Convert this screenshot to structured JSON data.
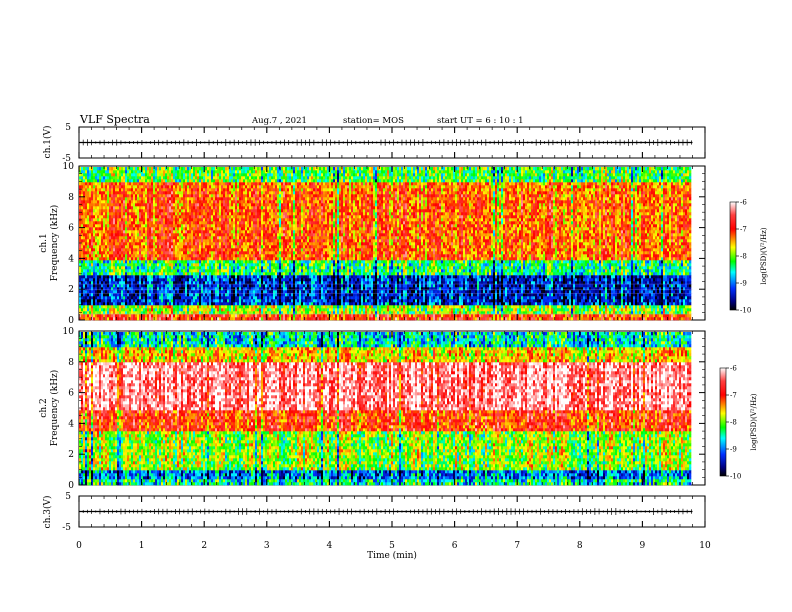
{
  "header": {
    "title": "VLF Spectra",
    "date": "Aug.7 , 2021",
    "station": "station= MOS",
    "start": "start UT = 6 : 10 : 1"
  },
  "colors": {
    "colormap": [
      "#ffffff",
      "#ff0000",
      "#ff8c00",
      "#ffff00",
      "#00ff00",
      "#00ffff",
      "#0040ff",
      "#000080",
      "#000000"
    ]
  },
  "chart_data": [
    {
      "type": "line",
      "panel": "ch1-waveform",
      "ylabel": "ch.1(V)",
      "ylim": [
        -5,
        5
      ],
      "y_tick_labels": [
        "5",
        "-5"
      ],
      "x": [
        0,
        9.8
      ],
      "values": [
        0,
        0
      ]
    },
    {
      "type": "heatmap",
      "panel": "ch1-spectrogram",
      "ylabel": "ch.1 Frequency (kHz)",
      "ylim": [
        0,
        10
      ],
      "y_tick_labels": [
        "0",
        "2",
        "4",
        "6",
        "8",
        "10"
      ],
      "x_range_min": [
        0,
        9.8
      ],
      "bands": [
        {
          "freq_khz": [
            0,
            0.3
          ],
          "logpsd": -7.0
        },
        {
          "freq_khz": [
            0.3,
            1.0
          ],
          "logpsd": -8.0
        },
        {
          "freq_khz": [
            1.0,
            3.0
          ],
          "logpsd": -9.3
        },
        {
          "freq_khz": [
            3.0,
            4.0
          ],
          "logpsd": -8.4
        },
        {
          "freq_khz": [
            4.0,
            8.5
          ],
          "logpsd": -7.2
        },
        {
          "freq_khz": [
            8.5,
            9.0
          ],
          "logpsd": -7.3
        },
        {
          "freq_khz": [
            9.0,
            10.0
          ],
          "logpsd": -8.2
        }
      ],
      "colorbar": {
        "label": "log(PSD)(V²/Hz)",
        "range": [
          -10,
          -6
        ],
        "tick_labels": [
          "-6",
          "-7",
          "-8",
          "-9",
          "-10"
        ]
      }
    },
    {
      "type": "heatmap",
      "panel": "ch2-spectrogram",
      "ylabel": "ch.2 Frequency (kHz)",
      "ylim": [
        0,
        10
      ],
      "y_tick_labels": [
        "0",
        "2",
        "4",
        "6",
        "8",
        "10"
      ],
      "x_range_min": [
        0,
        9.8
      ],
      "bands": [
        {
          "freq_khz": [
            0,
            0.3
          ],
          "logpsd": -8.5
        },
        {
          "freq_khz": [
            0.3,
            1.0
          ],
          "logpsd": -9.0
        },
        {
          "freq_khz": [
            1.0,
            3.5
          ],
          "logpsd": -8.0
        },
        {
          "freq_khz": [
            3.5,
            5.0
          ],
          "logpsd": -7.0
        },
        {
          "freq_khz": [
            5.0,
            8.0
          ],
          "logpsd": -6.3
        },
        {
          "freq_khz": [
            8.0,
            9.0
          ],
          "logpsd": -7.6
        },
        {
          "freq_khz": [
            9.0,
            10.0
          ],
          "logpsd": -8.6
        }
      ],
      "colorbar": {
        "label": "log(PSD)(V²/Hz)",
        "range": [
          -10,
          -6
        ],
        "tick_labels": [
          "-6",
          "-7",
          "-8",
          "-9",
          "-10"
        ]
      }
    },
    {
      "type": "line",
      "panel": "ch3-waveform",
      "ylabel": "ch.3(V)",
      "ylim": [
        -5,
        5
      ],
      "y_tick_labels": [
        "5",
        "-5"
      ],
      "x": [
        0,
        9.8
      ],
      "values": [
        0,
        0
      ]
    }
  ],
  "x_axis": {
    "label": "Time (min)",
    "range": [
      0,
      10
    ],
    "tick_labels": [
      "0",
      "1",
      "2",
      "3",
      "4",
      "5",
      "6",
      "7",
      "8",
      "9",
      "10"
    ]
  }
}
